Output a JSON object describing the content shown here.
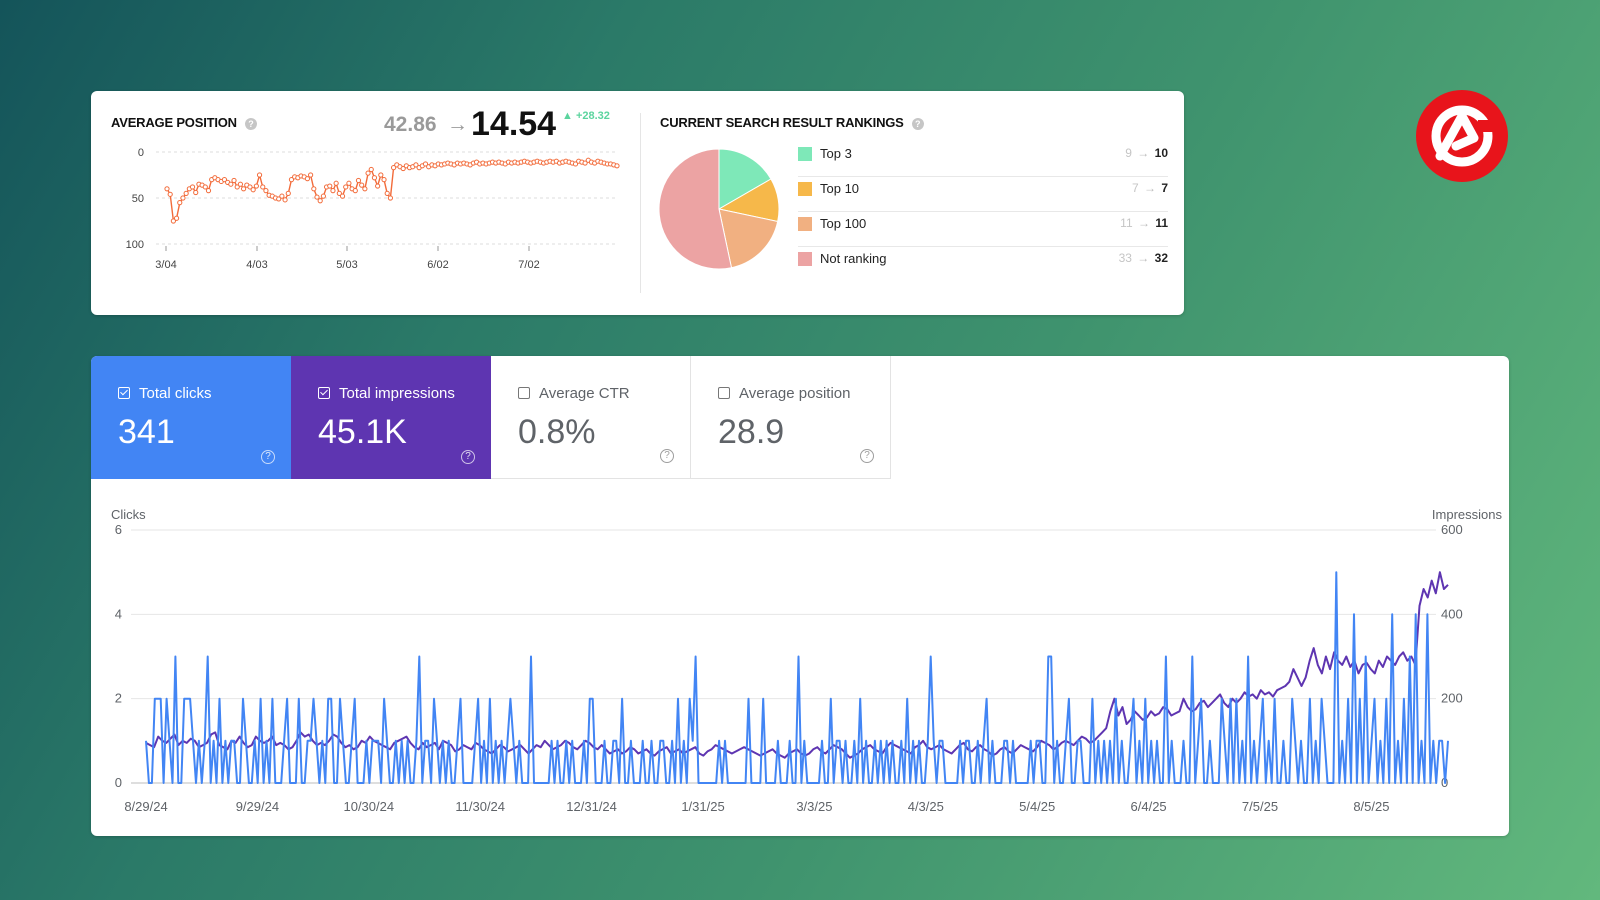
{
  "avg_position_panel": {
    "title": "AVERAGE POSITION",
    "old_value": "42.86",
    "arrow": "→",
    "new_value": "14.54",
    "delta": "▲ +28.32",
    "y_ticks": [
      "0",
      "50",
      "100"
    ],
    "x_ticks": [
      "3/04",
      "4/03",
      "5/03",
      "6/02",
      "7/02"
    ],
    "line_color": "#f26b3a"
  },
  "rankings_panel": {
    "title": "CURRENT SEARCH RESULT RANKINGS",
    "arrow": "→",
    "items": [
      {
        "label": "Top 3",
        "old": "9",
        "new": "10",
        "color": "#7ee8b8"
      },
      {
        "label": "Top 10",
        "old": "7",
        "new": "7",
        "color": "#f6b84a"
      },
      {
        "label": "Top 100",
        "old": "11",
        "new": "11",
        "color": "#f1b081"
      },
      {
        "label": "Not ranking",
        "old": "33",
        "new": "32",
        "color": "#eca3a3"
      }
    ]
  },
  "metrics": {
    "total_clicks": {
      "label": "Total clicks",
      "value": "341",
      "checked": true,
      "color": "#4285f4"
    },
    "total_impressions": {
      "label": "Total impressions",
      "value": "45.1K",
      "checked": true,
      "color": "#5e35b1"
    },
    "average_ctr": {
      "label": "Average CTR",
      "value": "0.8%",
      "checked": false
    },
    "average_position": {
      "label": "Average position",
      "value": "28.9",
      "checked": false
    },
    "help_glyph": "?"
  },
  "main_chart": {
    "left_axis_title": "Clicks",
    "right_axis_title": "Impressions",
    "left_ticks": [
      "6",
      "4",
      "2",
      "0"
    ],
    "right_ticks": [
      "600",
      "400",
      "200",
      "0"
    ],
    "x_ticks": [
      "8/29/24",
      "9/29/24",
      "10/30/24",
      "11/30/24",
      "12/31/24",
      "1/31/25",
      "3/3/25",
      "4/3/25",
      "5/4/25",
      "6/4/25",
      "7/5/25",
      "8/5/25"
    ]
  },
  "chart_data": [
    {
      "type": "line",
      "title": "AVERAGE POSITION",
      "x_ticks": [
        "3/04",
        "4/03",
        "5/03",
        "6/02",
        "7/02"
      ],
      "ylim": [
        100,
        0
      ],
      "y_inverted": true,
      "series": [
        {
          "color": "#f26b3a",
          "values": [
            40,
            46,
            75,
            72,
            55,
            50,
            45,
            40,
            38,
            44,
            35,
            36,
            38,
            42,
            30,
            28,
            30,
            32,
            30,
            33,
            35,
            31,
            38,
            35,
            40,
            36,
            38,
            41,
            37,
            25,
            38,
            42,
            47,
            48,
            50,
            51,
            48,
            52,
            45,
            30,
            27,
            28,
            26,
            27,
            29,
            25,
            40,
            49,
            53,
            48,
            38,
            37,
            42,
            34,
            45,
            48,
            38,
            34,
            40,
            42,
            31,
            36,
            40,
            23,
            19,
            28,
            37,
            25,
            30,
            45,
            50,
            17,
            14,
            16,
            18,
            15,
            17,
            16,
            14,
            17,
            15,
            13,
            16,
            14,
            15,
            13,
            14,
            13,
            12,
            13,
            14,
            12,
            13,
            12,
            13,
            14,
            12,
            11,
            13,
            12,
            13,
            12,
            11,
            12,
            11,
            12,
            13,
            11,
            12,
            11,
            12,
            11,
            10,
            11,
            12,
            11,
            10,
            11,
            12,
            11,
            10,
            11,
            10,
            12,
            11,
            10,
            11,
            12,
            13,
            10,
            11,
            12,
            9,
            11,
            12,
            10,
            11,
            12,
            13,
            13,
            14,
            15
          ]
        }
      ]
    },
    {
      "type": "pie",
      "title": "CURRENT SEARCH RESULT RANKINGS",
      "categories": [
        "Top 3",
        "Top 10",
        "Top 100",
        "Not ranking"
      ],
      "values": [
        10,
        7,
        11,
        32
      ],
      "colors": [
        "#7ee8b8",
        "#f6b84a",
        "#f1b081",
        "#eca3a3"
      ]
    },
    {
      "type": "line",
      "x_ticks": [
        "8/29/24",
        "9/29/24",
        "10/30/24",
        "11/30/24",
        "12/31/24",
        "1/31/25",
        "3/3/25",
        "4/3/25",
        "5/4/25",
        "6/4/25",
        "7/5/25",
        "8/5/25"
      ],
      "series": [
        {
          "name": "Clicks",
          "axis": "left",
          "ylim": [
            0,
            6
          ],
          "color": "#4285f4",
          "values": [
            1,
            0,
            0,
            2,
            2,
            2,
            0,
            2,
            1,
            0,
            3,
            0,
            0,
            2,
            2,
            2,
            1,
            0,
            1,
            0,
            1,
            3,
            0,
            1,
            0,
            2,
            0,
            1,
            0,
            1,
            1,
            0,
            0,
            2,
            1,
            0,
            0,
            1,
            0,
            2,
            0,
            1,
            0,
            2,
            0,
            0,
            0,
            1,
            2,
            0,
            0,
            0,
            2,
            0,
            0,
            1,
            1,
            2,
            1,
            0,
            1,
            0,
            2,
            2,
            0,
            0,
            2,
            1,
            0,
            0,
            1,
            2,
            0,
            0,
            0,
            1,
            0,
            1,
            1,
            1,
            0,
            2,
            1,
            0,
            0,
            1,
            0,
            1,
            0,
            1,
            0,
            0,
            1,
            3,
            0,
            1,
            1,
            0,
            2,
            1,
            0,
            1,
            0,
            1,
            0,
            0,
            1,
            2,
            0,
            0,
            0,
            0,
            1,
            2,
            0,
            1,
            0,
            2,
            0,
            1,
            0,
            1,
            0,
            1,
            2,
            1,
            0,
            1,
            0,
            0,
            0,
            3,
            0,
            0,
            0,
            0,
            0,
            0,
            1,
            0,
            1,
            0,
            0,
            1,
            0,
            1,
            0,
            0,
            0,
            1,
            0,
            2,
            2,
            0,
            0,
            0,
            1,
            0,
            0,
            1,
            1,
            0,
            2,
            0,
            0,
            1,
            0,
            0,
            0,
            1,
            0,
            0,
            1,
            0,
            0,
            1,
            1,
            0,
            0,
            1,
            0,
            2,
            0,
            1,
            0,
            2,
            1,
            3,
            0,
            0,
            0,
            0,
            0,
            0,
            0,
            1,
            0,
            1,
            0,
            0,
            0,
            0,
            0,
            0,
            0,
            2,
            0,
            0,
            0,
            0,
            2,
            0,
            0,
            0,
            0,
            1,
            0,
            0,
            0,
            1,
            0,
            0,
            3,
            0,
            1,
            0,
            0,
            0,
            0,
            0,
            1,
            0,
            0,
            2,
            0,
            1,
            1,
            0,
            1,
            0,
            0,
            1,
            0,
            2,
            0,
            1,
            0,
            0,
            1,
            0,
            1,
            0,
            1,
            0,
            1,
            0,
            0,
            1,
            0,
            2,
            0,
            1,
            0,
            1,
            0,
            0,
            1,
            3,
            1,
            0,
            1,
            1,
            0,
            0,
            0,
            0,
            0,
            1,
            0,
            1,
            1,
            0,
            0,
            1,
            0,
            1,
            2,
            0,
            1,
            0,
            0,
            0,
            1,
            1,
            0,
            1,
            0,
            0,
            0,
            0,
            0,
            1,
            0,
            1,
            1,
            0,
            0,
            3,
            3,
            0,
            1,
            0,
            0,
            1,
            2,
            0,
            0,
            1,
            1,
            0,
            0,
            0,
            2,
            0,
            1,
            0,
            1,
            0,
            1,
            0,
            2,
            0,
            1,
            0,
            0,
            1,
            2,
            0,
            1,
            0,
            2,
            0,
            1,
            0,
            1,
            0,
            0,
            3,
            0,
            1,
            0,
            0,
            0,
            1,
            0,
            0,
            3,
            0,
            1,
            2,
            0,
            0,
            1,
            0,
            0,
            0,
            2,
            1,
            0,
            2,
            0,
            2,
            0,
            1,
            0,
            3,
            0,
            1,
            0,
            1,
            2,
            0,
            1,
            0,
            2,
            0,
            0,
            1,
            0,
            0,
            2,
            1,
            0,
            1,
            0,
            0,
            2,
            0,
            1,
            0,
            2,
            1,
            0,
            0,
            0,
            5,
            0,
            1,
            0,
            2,
            0,
            4,
            0,
            2,
            0,
            3,
            0,
            1,
            2,
            0,
            1,
            0,
            2,
            0,
            4,
            0,
            1,
            0,
            2,
            0,
            3,
            0,
            4,
            0,
            1,
            0,
            4,
            0,
            1,
            0,
            1,
            1,
            0,
            1
          ]
        },
        {
          "name": "Impressions",
          "axis": "right",
          "ylim": [
            0,
            600
          ],
          "color": "#5e35b1",
          "values": [
            95,
            90,
            85,
            110,
            100,
            95,
            105,
            115,
            90,
            100,
            95,
            105,
            100,
            85,
            90,
            95,
            115,
            120,
            90,
            85,
            80,
            100,
            95,
            110,
            95,
            85,
            90,
            110,
            100,
            95,
            100,
            110,
            90,
            95,
            90,
            80,
            85,
            100,
            120,
            110,
            115,
            100,
            90,
            95,
            90,
            100,
            115,
            110,
            95,
            85,
            90,
            80,
            85,
            100,
            95,
            110,
            100,
            95,
            90,
            85,
            80,
            95,
            100,
            105,
            110,
            95,
            85,
            80,
            95,
            85,
            90,
            95,
            80,
            100,
            95,
            90,
            75,
            80,
            90,
            85,
            80,
            95,
            90,
            80,
            75,
            70,
            80,
            90,
            85,
            75,
            80,
            85,
            90,
            80,
            70,
            80,
            90,
            85,
            100,
            90,
            80,
            85,
            90,
            100,
            95,
            85,
            80,
            90,
            100,
            95,
            85,
            80,
            90,
            80,
            70,
            75,
            80,
            70,
            75,
            85,
            80,
            70,
            75,
            80,
            70,
            65,
            75,
            80,
            85,
            70,
            75,
            80,
            70,
            75,
            80,
            85,
            70,
            65,
            75,
            80,
            90,
            85,
            80,
            75,
            70,
            75,
            80,
            85,
            80,
            75,
            70,
            65,
            70,
            75,
            80,
            70,
            65,
            60,
            70,
            75,
            80,
            70,
            65,
            70,
            80,
            85,
            75,
            70,
            80,
            90,
            85,
            80,
            70,
            60,
            65,
            70,
            80,
            85,
            90,
            80,
            75,
            70,
            85,
            95,
            90,
            85,
            80,
            75,
            70,
            85,
            90,
            100,
            85,
            80,
            85,
            90,
            80,
            75,
            70,
            80,
            90,
            95,
            80,
            75,
            85,
            90,
            80,
            75,
            65,
            70,
            80,
            85,
            75,
            70,
            80,
            90,
            85,
            80,
            75,
            85,
            100,
            95,
            90,
            80,
            85,
            95,
            100,
            95,
            90,
            100,
            110,
            105,
            95,
            100,
            110,
            120,
            130,
            170,
            200,
            160,
            180,
            140,
            150,
            170,
            160,
            150,
            155,
            170,
            160,
            165,
            180,
            175,
            160,
            165,
            170,
            200,
            180,
            170,
            175,
            190,
            195,
            180,
            190,
            200,
            210,
            190,
            180,
            200,
            190,
            200,
            215,
            205,
            210,
            200,
            220,
            210,
            215,
            205,
            220,
            225,
            230,
            240,
            270,
            250,
            230,
            250,
            290,
            320,
            280,
            260,
            300,
            270,
            310,
            290,
            280,
            300,
            275,
            290,
            260,
            280,
            285,
            270,
            260,
            290,
            275,
            300,
            290,
            280,
            300,
            310,
            290,
            300,
            280,
            420,
            460,
            440,
            480,
            450,
            500,
            460,
            470
          ]
        }
      ]
    }
  ]
}
